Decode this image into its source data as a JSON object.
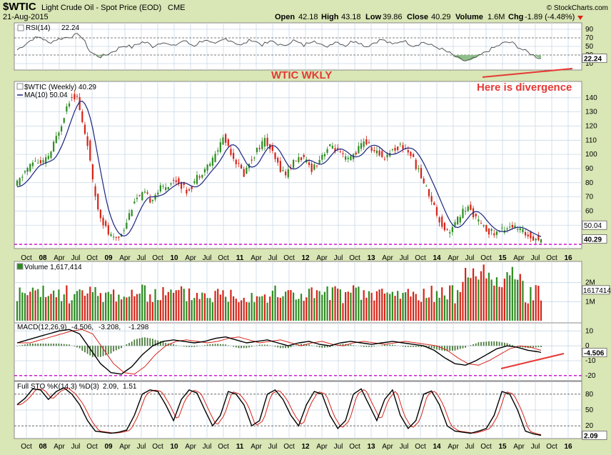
{
  "header": {
    "symbol": "$WTIC",
    "name": "Light Crude Oil - Spot Price (EOD)",
    "exchange": "CME",
    "date": "21-Aug-2015",
    "open_label": "Open",
    "open": "42.18",
    "high_label": "High",
    "high": "43.18",
    "low_label": "Low",
    "low": "39.86",
    "close_label": "Close",
    "close": "40.29",
    "volume_label": "Volume",
    "volume": "1.6M",
    "chg_label": "Chg",
    "chg": "-1.89 (-4.48%)",
    "watermark": "© StockCharts.com"
  },
  "annotations": {
    "title": "WTIC WKLY",
    "divergence": "Here is divergence"
  },
  "colors": {
    "panel_bg": "#ffffff",
    "grid": "#c9d8e6",
    "frame_bg": "#d9e6b5",
    "up": "#2e8b22",
    "down": "#d62418",
    "ma": "#1a237e",
    "annotation": "#e53935",
    "magenta": "#cc00cc",
    "rsi_fill": "#8fbf8a"
  },
  "x_axis": {
    "labels": [
      "Oct",
      "08",
      "Apr",
      "Jul",
      "Oct",
      "09",
      "Apr",
      "Jul",
      "Oct",
      "10",
      "Apr",
      "Jul",
      "Oct",
      "11",
      "Apr",
      "Jul",
      "Oct",
      "12",
      "Apr",
      "Jul",
      "Oct",
      "13",
      "Apr",
      "Jul",
      "Oct",
      "14",
      "Apr",
      "Jul",
      "Oct",
      "15",
      "Apr",
      "Jul",
      "Oct",
      "16"
    ],
    "bold": [
      "08",
      "09",
      "10",
      "11",
      "12",
      "13",
      "14",
      "15",
      "16"
    ]
  },
  "chart_data": [
    {
      "type": "line",
      "panel": "rsi",
      "title": "RSI(14) 22.24",
      "ylim": [
        0,
        100
      ],
      "ticks": [
        "90",
        "70",
        "50",
        "30",
        "10"
      ],
      "last_value": "22.24",
      "levels": [
        70,
        30
      ],
      "x": [
        0,
        6,
        12,
        18,
        24,
        30,
        36,
        42,
        48,
        52,
        56,
        60,
        64,
        68,
        72,
        76,
        80,
        84,
        88,
        92,
        96,
        100,
        104,
        108,
        112,
        116,
        120,
        124,
        128,
        132,
        136,
        140,
        144,
        148,
        152,
        156,
        160,
        164,
        168,
        172,
        176,
        180,
        184,
        188,
        192,
        196,
        200,
        204,
        208,
        212,
        216,
        220,
        224,
        228,
        232,
        236,
        240,
        244,
        248,
        252,
        256,
        260,
        264,
        268,
        272,
        276,
        280,
        284,
        288,
        292,
        296,
        300,
        304,
        308,
        312,
        316,
        320,
        324,
        328,
        332,
        336,
        340,
        344,
        348,
        352,
        356,
        360,
        364,
        368,
        372,
        376,
        380,
        384,
        388,
        392,
        396,
        400,
        402
      ],
      "values": [
        42,
        55,
        68,
        72,
        58,
        66,
        70,
        74,
        78,
        60,
        38,
        30,
        26,
        30,
        36,
        42,
        50,
        52,
        48,
        55,
        60,
        58,
        50,
        56,
        62,
        54,
        50,
        58,
        64,
        56,
        52,
        60,
        66,
        58,
        54,
        62,
        68,
        64,
        58,
        52,
        60,
        66,
        60,
        54,
        58,
        62,
        56,
        50,
        58,
        64,
        58,
        52,
        60,
        66,
        56,
        48,
        54,
        62,
        58,
        52,
        60,
        64,
        56,
        50,
        56,
        62,
        66,
        60,
        54,
        60,
        64,
        58,
        52,
        56,
        60,
        54,
        50,
        46,
        40,
        34,
        26,
        20,
        16,
        18,
        24,
        30,
        38,
        44,
        50,
        56,
        60,
        58,
        50,
        42,
        36,
        30,
        24,
        22
      ]
    },
    {
      "type": "candlestick",
      "panel": "price",
      "title": "$WTIC (Weekly) 40.29",
      "ylim": [
        35,
        150
      ],
      "ticks": [
        "140",
        "130",
        "120",
        "110",
        "100",
        "90",
        "80",
        "70",
        "60",
        "50"
      ],
      "ma_label": "MA(10) 50.04",
      "ma_value": "50.04",
      "last_value": "40.29",
      "support_level": 36.5,
      "x": [
        0,
        4,
        8,
        12,
        16,
        20,
        24,
        28,
        32,
        36,
        40,
        44,
        48,
        52,
        56,
        60,
        64,
        68,
        72,
        76,
        80,
        84,
        88,
        92,
        96,
        100,
        104,
        108,
        112,
        116,
        120,
        124,
        128,
        132,
        136,
        140,
        144,
        148,
        152,
        156,
        160,
        164,
        168,
        172,
        176,
        180,
        184,
        188,
        192,
        196,
        200,
        204,
        208,
        212,
        216,
        220,
        224,
        228,
        232,
        236,
        240,
        244,
        248,
        252,
        256,
        260,
        264,
        268,
        272,
        276,
        280,
        284,
        288,
        292,
        296,
        300,
        304,
        308,
        312,
        316,
        320,
        324,
        328,
        332,
        336,
        340,
        344,
        348,
        352,
        356,
        360,
        364,
        368,
        372,
        376,
        380,
        384,
        388,
        392,
        396,
        400,
        402
      ],
      "values": [
        77,
        82,
        88,
        92,
        96,
        93,
        96,
        102,
        112,
        122,
        134,
        142,
        140,
        122,
        108,
        80,
        62,
        52,
        44,
        40,
        42,
        48,
        58,
        68,
        70,
        72,
        68,
        72,
        76,
        78,
        80,
        82,
        78,
        74,
        78,
        84,
        88,
        92,
        96,
        104,
        112,
        106,
        98,
        92,
        86,
        94,
        100,
        106,
        110,
        104,
        96,
        90,
        86,
        92,
        96,
        98,
        94,
        90,
        94,
        100,
        104,
        106,
        102,
        98,
        96,
        100,
        104,
        110,
        106,
        102,
        100,
        98,
        102,
        104,
        106,
        104,
        100,
        92,
        84,
        76,
        68,
        58,
        50,
        46,
        48,
        54,
        60,
        62,
        58,
        52,
        48,
        46,
        44,
        46,
        48,
        50,
        48,
        46,
        44,
        42,
        41,
        40
      ]
    },
    {
      "type": "bar",
      "panel": "volume",
      "title": "Volume 1,617,414",
      "ticks": [
        "2M",
        "1M"
      ],
      "last_value": "1617414",
      "ylim": [
        0,
        3
      ]
    },
    {
      "type": "line",
      "panel": "macd",
      "title": "MACD(12,26,9) -4.506, -3.208, -1.298",
      "macd_value": "-4.506",
      "signal_value": "-3.208",
      "hist_value": "-1.298",
      "ylim": [
        -22,
        14
      ],
      "ticks": [
        "10",
        "0",
        "-10",
        "-20"
      ],
      "last_value": "-4.506",
      "x": [
        0,
        8,
        16,
        24,
        32,
        40,
        48,
        56,
        64,
        72,
        80,
        88,
        96,
        104,
        112,
        120,
        128,
        136,
        144,
        152,
        160,
        168,
        176,
        184,
        192,
        200,
        208,
        216,
        224,
        232,
        240,
        248,
        256,
        264,
        272,
        280,
        288,
        296,
        304,
        312,
        320,
        328,
        336,
        344,
        352,
        360,
        368,
        376,
        384,
        392,
        400,
        402
      ],
      "values": [
        2,
        4,
        6,
        8,
        10,
        11,
        8,
        -2,
        -12,
        -18,
        -19,
        -14,
        -6,
        0,
        3,
        4,
        3,
        2,
        3,
        5,
        6,
        4,
        2,
        3,
        4,
        2,
        0,
        2,
        3,
        1,
        0,
        2,
        3,
        2,
        1,
        2,
        3,
        2,
        1,
        0,
        -3,
        -8,
        -12,
        -13,
        -10,
        -6,
        -2,
        0,
        -1,
        -3,
        -4,
        -4.5
      ]
    },
    {
      "type": "line",
      "panel": "sto",
      "title": "Full STO %K(14,3) %D(3) 2.09, 1.51",
      "k_value": "2.09",
      "d_value": "1.51",
      "ylim": [
        0,
        100
      ],
      "ticks": [
        "80",
        "50",
        "20"
      ],
      "levels": [
        80,
        20
      ],
      "last_value": "2.09",
      "x": [
        0,
        6,
        12,
        18,
        24,
        30,
        36,
        42,
        48,
        54,
        60,
        66,
        72,
        78,
        84,
        90,
        96,
        102,
        108,
        114,
        120,
        126,
        132,
        138,
        144,
        150,
        156,
        162,
        168,
        174,
        180,
        186,
        192,
        198,
        204,
        210,
        216,
        222,
        228,
        234,
        240,
        246,
        252,
        258,
        264,
        270,
        276,
        282,
        288,
        294,
        300,
        306,
        312,
        318,
        324,
        330,
        336,
        342,
        348,
        354,
        360,
        366,
        372,
        378,
        384,
        390,
        396,
        402
      ],
      "values": [
        60,
        72,
        90,
        88,
        70,
        85,
        92,
        80,
        60,
        30,
        10,
        8,
        6,
        8,
        12,
        40,
        80,
        88,
        85,
        60,
        30,
        70,
        88,
        82,
        50,
        20,
        40,
        85,
        80,
        60,
        20,
        30,
        80,
        88,
        70,
        40,
        20,
        60,
        85,
        80,
        40,
        15,
        30,
        80,
        90,
        60,
        30,
        70,
        88,
        40,
        15,
        30,
        80,
        86,
        60,
        20,
        10,
        8,
        6,
        10,
        15,
        40,
        85,
        80,
        50,
        10,
        5,
        2
      ]
    }
  ]
}
